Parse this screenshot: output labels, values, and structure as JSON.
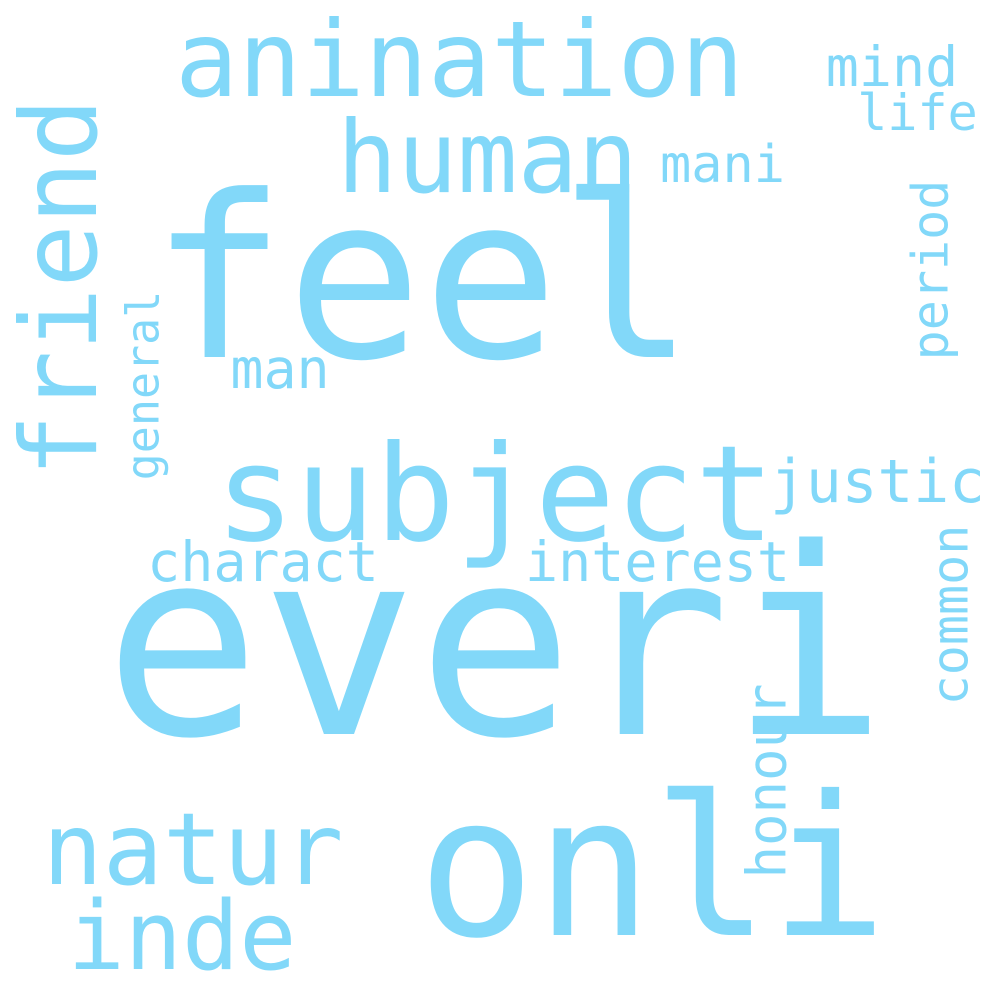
{
  "colors": {
    "background": "#ffffff",
    "word": "#82d8f9"
  },
  "words": {
    "feel": "feel",
    "everi": "everi",
    "onli": "onli",
    "subject": "subject",
    "human": "human",
    "anination": "anination",
    "natur": "natur",
    "friend": "friend",
    "inde": "inde",
    "interest": "interest",
    "charact": "charact",
    "justic": "justic",
    "common": "common",
    "honour": "honour",
    "period": "period",
    "general": "general",
    "man": "man",
    "mani": "mani",
    "mind": "mind",
    "life": "life"
  }
}
